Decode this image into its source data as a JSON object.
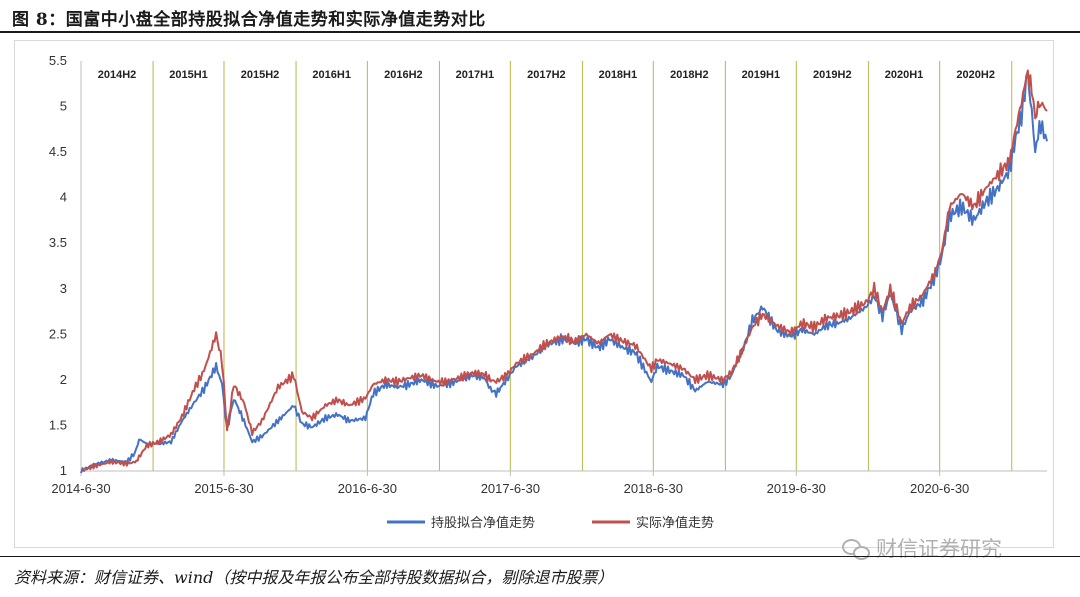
{
  "figure": {
    "title": "图 8：国富中小盘全部持股拟合净值走势和实际净值走势对比",
    "source": "资料来源：财信证券、wind（按中报及年报公布全部持股数据拟合，剔除退市股票）",
    "watermark": "财信证券研究",
    "watermark_icon": "wechat-icon"
  },
  "chart_data": {
    "type": "line",
    "title": "",
    "xlabel": "",
    "ylabel": "",
    "ylim": [
      1,
      5.5
    ],
    "yticks": [
      "1",
      "1.5",
      "2",
      "2.5",
      "3",
      "3.5",
      "4",
      "4.5",
      "5",
      "5.5"
    ],
    "xlim": [
      "2014-06-30",
      "2021-03-31"
    ],
    "xticks": [
      {
        "date": "2014-06-30",
        "label": "2014-6-30"
      },
      {
        "date": "2015-06-30",
        "label": "2015-6-30"
      },
      {
        "date": "2016-06-30",
        "label": "2016-6-30"
      },
      {
        "date": "2017-06-30",
        "label": "2017-6-30"
      },
      {
        "date": "2018-06-30",
        "label": "2018-6-30"
      },
      {
        "date": "2019-06-30",
        "label": "2019-6-30"
      },
      {
        "date": "2020-06-30",
        "label": "2020-6-30"
      }
    ],
    "period_lines": [
      "2014-12-31",
      "2015-06-30",
      "2015-12-31",
      "2016-06-30",
      "2016-12-31",
      "2017-06-30",
      "2017-12-31",
      "2018-06-30",
      "2018-12-31",
      "2019-06-30",
      "2019-12-31",
      "2020-06-30",
      "2020-12-31"
    ],
    "periods": [
      {
        "label": "2014H2",
        "start": "2014-06-30",
        "end": "2014-12-31"
      },
      {
        "label": "2015H1",
        "start": "2014-12-31",
        "end": "2015-06-30"
      },
      {
        "label": "2015H2",
        "start": "2015-06-30",
        "end": "2015-12-31"
      },
      {
        "label": "2016H1",
        "start": "2015-12-31",
        "end": "2016-06-30"
      },
      {
        "label": "2016H2",
        "start": "2016-06-30",
        "end": "2016-12-31"
      },
      {
        "label": "2017H1",
        "start": "2016-12-31",
        "end": "2017-06-30"
      },
      {
        "label": "2017H2",
        "start": "2017-06-30",
        "end": "2017-12-31"
      },
      {
        "label": "2018H1",
        "start": "2017-12-31",
        "end": "2018-06-30"
      },
      {
        "label": "2018H2",
        "start": "2018-06-30",
        "end": "2018-12-31"
      },
      {
        "label": "2019H1",
        "start": "2018-12-31",
        "end": "2019-06-30"
      },
      {
        "label": "2019H2",
        "start": "2019-06-30",
        "end": "2019-12-31"
      },
      {
        "label": "2020H1",
        "start": "2019-12-31",
        "end": "2020-06-30"
      },
      {
        "label": "2020H2",
        "start": "2020-06-30",
        "end": "2020-12-31"
      }
    ],
    "grid": false,
    "legend_position": "bottom",
    "series": [
      {
        "name": "持股拟合净值走势",
        "color": "#4472c4",
        "points": [
          [
            "2014-06-30",
            1.0
          ],
          [
            "2014-08-01",
            1.07
          ],
          [
            "2014-09-15",
            1.12
          ],
          [
            "2014-10-25",
            1.1
          ],
          [
            "2014-11-15",
            1.2
          ],
          [
            "2014-11-25",
            1.35
          ],
          [
            "2014-12-15",
            1.3
          ],
          [
            "2015-01-15",
            1.3
          ],
          [
            "2015-02-15",
            1.32
          ],
          [
            "2015-03-15",
            1.55
          ],
          [
            "2015-04-15",
            1.75
          ],
          [
            "2015-05-10",
            1.9
          ],
          [
            "2015-06-10",
            2.15
          ],
          [
            "2015-06-25",
            1.95
          ],
          [
            "2015-07-08",
            1.45
          ],
          [
            "2015-07-25",
            1.8
          ],
          [
            "2015-08-20",
            1.55
          ],
          [
            "2015-09-10",
            1.32
          ],
          [
            "2015-10-05",
            1.38
          ],
          [
            "2015-11-15",
            1.55
          ],
          [
            "2015-12-25",
            1.72
          ],
          [
            "2016-01-15",
            1.52
          ],
          [
            "2016-02-10",
            1.48
          ],
          [
            "2016-03-15",
            1.58
          ],
          [
            "2016-04-15",
            1.62
          ],
          [
            "2016-05-15",
            1.55
          ],
          [
            "2016-06-25",
            1.58
          ],
          [
            "2016-07-15",
            1.85
          ],
          [
            "2016-08-15",
            1.95
          ],
          [
            "2016-09-15",
            1.92
          ],
          [
            "2016-10-15",
            1.95
          ],
          [
            "2016-11-15",
            2.0
          ],
          [
            "2016-12-25",
            1.93
          ],
          [
            "2017-01-15",
            1.95
          ],
          [
            "2017-02-25",
            2.0
          ],
          [
            "2017-03-25",
            2.05
          ],
          [
            "2017-04-25",
            2.02
          ],
          [
            "2017-05-10",
            1.9
          ],
          [
            "2017-05-25",
            1.85
          ],
          [
            "2017-06-20",
            2.0
          ],
          [
            "2017-07-15",
            2.15
          ],
          [
            "2017-08-25",
            2.25
          ],
          [
            "2017-10-01",
            2.38
          ],
          [
            "2017-11-10",
            2.45
          ],
          [
            "2017-12-10",
            2.4
          ],
          [
            "2018-01-10",
            2.45
          ],
          [
            "2018-02-10",
            2.35
          ],
          [
            "2018-03-10",
            2.45
          ],
          [
            "2018-04-15",
            2.35
          ],
          [
            "2018-05-15",
            2.3
          ],
          [
            "2018-06-25",
            1.98
          ],
          [
            "2018-07-10",
            2.15
          ],
          [
            "2018-08-10",
            2.1
          ],
          [
            "2018-09-15",
            2.05
          ],
          [
            "2018-10-15",
            1.88
          ],
          [
            "2018-11-15",
            1.98
          ],
          [
            "2018-12-25",
            1.95
          ],
          [
            "2019-01-15",
            2.05
          ],
          [
            "2019-02-15",
            2.35
          ],
          [
            "2019-03-10",
            2.65
          ],
          [
            "2019-04-05",
            2.8
          ],
          [
            "2019-05-10",
            2.55
          ],
          [
            "2019-06-15",
            2.48
          ],
          [
            "2019-07-15",
            2.55
          ],
          [
            "2019-08-15",
            2.5
          ],
          [
            "2019-09-15",
            2.6
          ],
          [
            "2019-10-15",
            2.62
          ],
          [
            "2019-11-15",
            2.68
          ],
          [
            "2019-12-25",
            2.8
          ],
          [
            "2020-01-15",
            2.92
          ],
          [
            "2020-02-05",
            2.7
          ],
          [
            "2020-02-25",
            2.95
          ],
          [
            "2020-03-25",
            2.55
          ],
          [
            "2020-04-15",
            2.75
          ],
          [
            "2020-05-15",
            2.85
          ],
          [
            "2020-06-15",
            3.1
          ],
          [
            "2020-07-05",
            3.35
          ],
          [
            "2020-07-25",
            3.8
          ],
          [
            "2020-08-25",
            3.9
          ],
          [
            "2020-09-25",
            3.75
          ],
          [
            "2020-10-25",
            3.95
          ],
          [
            "2020-11-25",
            4.1
          ],
          [
            "2020-12-25",
            4.3
          ],
          [
            "2021-01-10",
            4.65
          ],
          [
            "2021-01-25",
            4.9
          ],
          [
            "2021-02-10",
            5.4
          ],
          [
            "2021-02-20",
            4.9
          ],
          [
            "2021-03-01",
            4.55
          ],
          [
            "2021-03-15",
            4.8
          ],
          [
            "2021-03-31",
            4.62
          ]
        ]
      },
      {
        "name": "实际净值走势",
        "color": "#c0504d",
        "points": [
          [
            "2014-06-30",
            1.0
          ],
          [
            "2014-08-01",
            1.05
          ],
          [
            "2014-09-15",
            1.1
          ],
          [
            "2014-10-25",
            1.08
          ],
          [
            "2014-11-15",
            1.1
          ],
          [
            "2014-11-25",
            1.15
          ],
          [
            "2014-12-15",
            1.28
          ],
          [
            "2015-01-15",
            1.32
          ],
          [
            "2015-02-15",
            1.4
          ],
          [
            "2015-03-15",
            1.6
          ],
          [
            "2015-04-15",
            1.9
          ],
          [
            "2015-05-10",
            2.1
          ],
          [
            "2015-06-10",
            2.5
          ],
          [
            "2015-06-25",
            2.2
          ],
          [
            "2015-07-08",
            1.45
          ],
          [
            "2015-07-25",
            1.95
          ],
          [
            "2015-08-20",
            1.75
          ],
          [
            "2015-09-10",
            1.42
          ],
          [
            "2015-10-05",
            1.55
          ],
          [
            "2015-11-15",
            1.92
          ],
          [
            "2015-12-25",
            2.05
          ],
          [
            "2016-01-15",
            1.65
          ],
          [
            "2016-02-10",
            1.58
          ],
          [
            "2016-03-15",
            1.72
          ],
          [
            "2016-04-15",
            1.78
          ],
          [
            "2016-05-15",
            1.72
          ],
          [
            "2016-06-25",
            1.8
          ],
          [
            "2016-07-15",
            1.95
          ],
          [
            "2016-08-15",
            2.0
          ],
          [
            "2016-09-15",
            1.98
          ],
          [
            "2016-10-15",
            2.02
          ],
          [
            "2016-11-15",
            2.05
          ],
          [
            "2016-12-25",
            1.98
          ],
          [
            "2017-01-15",
            1.98
          ],
          [
            "2017-02-25",
            2.03
          ],
          [
            "2017-03-25",
            2.08
          ],
          [
            "2017-04-25",
            2.06
          ],
          [
            "2017-05-10",
            2.0
          ],
          [
            "2017-05-25",
            1.98
          ],
          [
            "2017-06-20",
            2.05
          ],
          [
            "2017-07-15",
            2.18
          ],
          [
            "2017-08-25",
            2.28
          ],
          [
            "2017-10-01",
            2.4
          ],
          [
            "2017-11-10",
            2.48
          ],
          [
            "2017-12-10",
            2.42
          ],
          [
            "2018-01-10",
            2.5
          ],
          [
            "2018-02-10",
            2.4
          ],
          [
            "2018-03-10",
            2.5
          ],
          [
            "2018-04-15",
            2.42
          ],
          [
            "2018-05-15",
            2.38
          ],
          [
            "2018-06-25",
            2.12
          ],
          [
            "2018-07-10",
            2.22
          ],
          [
            "2018-08-10",
            2.18
          ],
          [
            "2018-09-15",
            2.12
          ],
          [
            "2018-10-15",
            2.0
          ],
          [
            "2018-11-15",
            2.05
          ],
          [
            "2018-12-25",
            2.0
          ],
          [
            "2019-01-15",
            2.08
          ],
          [
            "2019-02-15",
            2.35
          ],
          [
            "2019-03-10",
            2.58
          ],
          [
            "2019-04-05",
            2.72
          ],
          [
            "2019-05-10",
            2.6
          ],
          [
            "2019-06-15",
            2.52
          ],
          [
            "2019-07-15",
            2.62
          ],
          [
            "2019-08-15",
            2.58
          ],
          [
            "2019-09-15",
            2.68
          ],
          [
            "2019-10-15",
            2.7
          ],
          [
            "2019-11-15",
            2.75
          ],
          [
            "2019-12-25",
            2.85
          ],
          [
            "2020-01-15",
            3.0
          ],
          [
            "2020-02-05",
            2.75
          ],
          [
            "2020-02-25",
            3.0
          ],
          [
            "2020-03-25",
            2.62
          ],
          [
            "2020-04-15",
            2.8
          ],
          [
            "2020-05-15",
            2.92
          ],
          [
            "2020-06-15",
            3.15
          ],
          [
            "2020-07-05",
            3.4
          ],
          [
            "2020-07-25",
            3.9
          ],
          [
            "2020-08-25",
            4.05
          ],
          [
            "2020-09-25",
            3.9
          ],
          [
            "2020-10-25",
            4.1
          ],
          [
            "2020-11-25",
            4.25
          ],
          [
            "2020-12-25",
            4.4
          ],
          [
            "2021-01-10",
            4.75
          ],
          [
            "2021-01-25",
            5.05
          ],
          [
            "2021-02-10",
            5.4
          ],
          [
            "2021-02-20",
            5.15
          ],
          [
            "2021-03-01",
            4.9
          ],
          [
            "2021-03-15",
            5.05
          ],
          [
            "2021-03-31",
            4.95
          ]
        ]
      }
    ]
  }
}
